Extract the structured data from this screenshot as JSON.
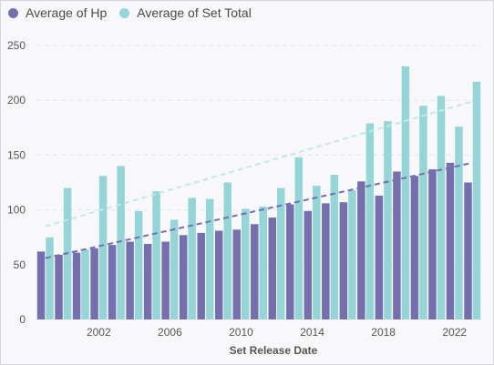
{
  "chart_data": {
    "type": "bar",
    "xlabel": "Set Release Date",
    "ylabel": "",
    "ylim": [
      0,
      250
    ],
    "yticks": [
      0,
      50,
      100,
      150,
      200,
      250
    ],
    "xtick_labels": [
      "2002",
      "2006",
      "2010",
      "2014",
      "2018",
      "2022"
    ],
    "categories": [
      1999,
      2000,
      2001,
      2002,
      2003,
      2004,
      2005,
      2006,
      2007,
      2008,
      2009,
      2010,
      2011,
      2012,
      2013,
      2014,
      2015,
      2016,
      2017,
      2018,
      2019,
      2020,
      2021,
      2022,
      2023
    ],
    "grid": true,
    "legend_position": "top-left",
    "series": [
      {
        "name": "Average of Hp",
        "color": "#7570ad",
        "values": [
          62,
          59,
          61,
          65,
          68,
          71,
          69,
          71,
          77,
          79,
          81,
          82,
          87,
          93,
          105,
          99,
          106,
          107,
          126,
          113,
          135,
          131,
          137,
          143,
          125
        ]
      },
      {
        "name": "Average of Set Total",
        "color": "#95d5d8",
        "values": [
          75,
          120,
          64,
          131,
          140,
          99,
          117,
          91,
          111,
          110,
          125,
          101,
          103,
          120,
          148,
          122,
          132,
          118,
          179,
          181,
          231,
          195,
          204,
          176,
          217
        ]
      }
    ],
    "trendlines": [
      {
        "series": "Average of Hp",
        "color": "#7570ad",
        "from": [
          1999,
          56
        ],
        "to": [
          2023,
          143
        ]
      },
      {
        "series": "Average of Set Total",
        "color": "#c2e8ea",
        "from": [
          1999,
          85
        ],
        "to": [
          2023,
          199
        ]
      }
    ]
  }
}
